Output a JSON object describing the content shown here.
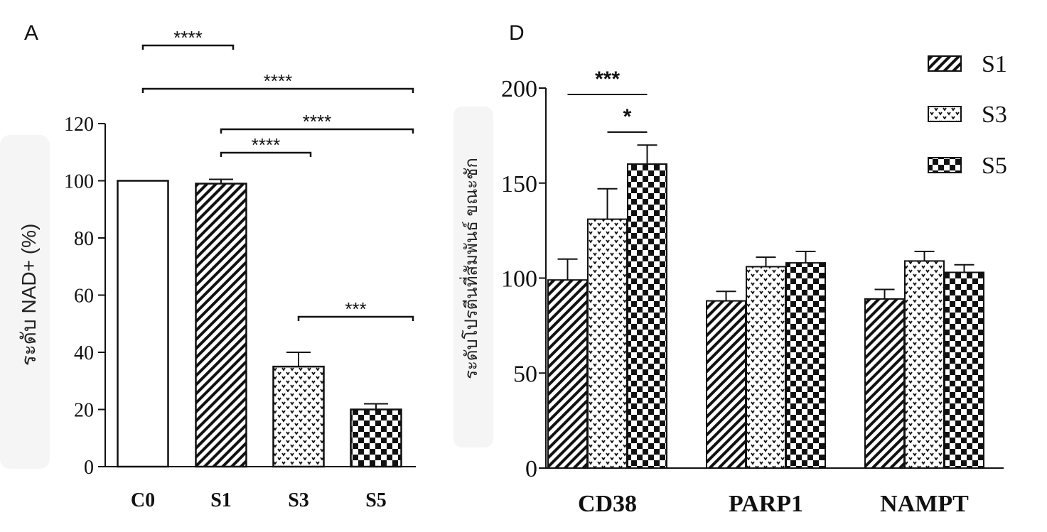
{
  "chart_data": [
    {
      "type": "bar",
      "panel_label": "A",
      "ylabel": "ระดับ NAD+ (%)",
      "ylim": [
        0,
        120
      ],
      "yticks": [
        0,
        20,
        40,
        60,
        80,
        100,
        120
      ],
      "categories": [
        "C0",
        "S1",
        "S3",
        "S5"
      ],
      "values": [
        100,
        99,
        35,
        20
      ],
      "errors": [
        0,
        1.5,
        5,
        2
      ],
      "patterns": [
        "blank",
        "hatch",
        "dots",
        "checker"
      ],
      "significance": [
        {
          "from": "C0",
          "to": "S1",
          "label": "****"
        },
        {
          "from": "C0",
          "to": "S5",
          "label": "****"
        },
        {
          "from": "S1",
          "to": "S5",
          "label": "****"
        },
        {
          "from": "S1",
          "to": "S3",
          "label": "****"
        },
        {
          "from": "S3",
          "to": "S5",
          "label": "***"
        }
      ]
    },
    {
      "type": "bar",
      "panel_label": "D",
      "ylabel": "ระดับโปรตีนที่สัมพันธ์ ขณะชัก",
      "ylim": [
        0,
        200
      ],
      "yticks": [
        0,
        50,
        100,
        150,
        200
      ],
      "categories": [
        "CD38",
        "PARP1",
        "NAMPT"
      ],
      "series": [
        {
          "name": "S1",
          "pattern": "hatch",
          "values": [
            99,
            88,
            89
          ],
          "errors": [
            11,
            5,
            5
          ]
        },
        {
          "name": "S3",
          "pattern": "dots",
          "values": [
            131,
            106,
            109
          ],
          "errors": [
            16,
            5,
            5
          ]
        },
        {
          "name": "S5",
          "pattern": "checker",
          "values": [
            160,
            108,
            103
          ],
          "errors": [
            10,
            6,
            4
          ]
        }
      ],
      "legend_position": "top-right",
      "significance": [
        {
          "category": "CD38",
          "from": "S1",
          "to": "S5",
          "label": "***"
        },
        {
          "category": "CD38",
          "from": "S3",
          "to": "S5",
          "label": "*"
        }
      ]
    }
  ]
}
